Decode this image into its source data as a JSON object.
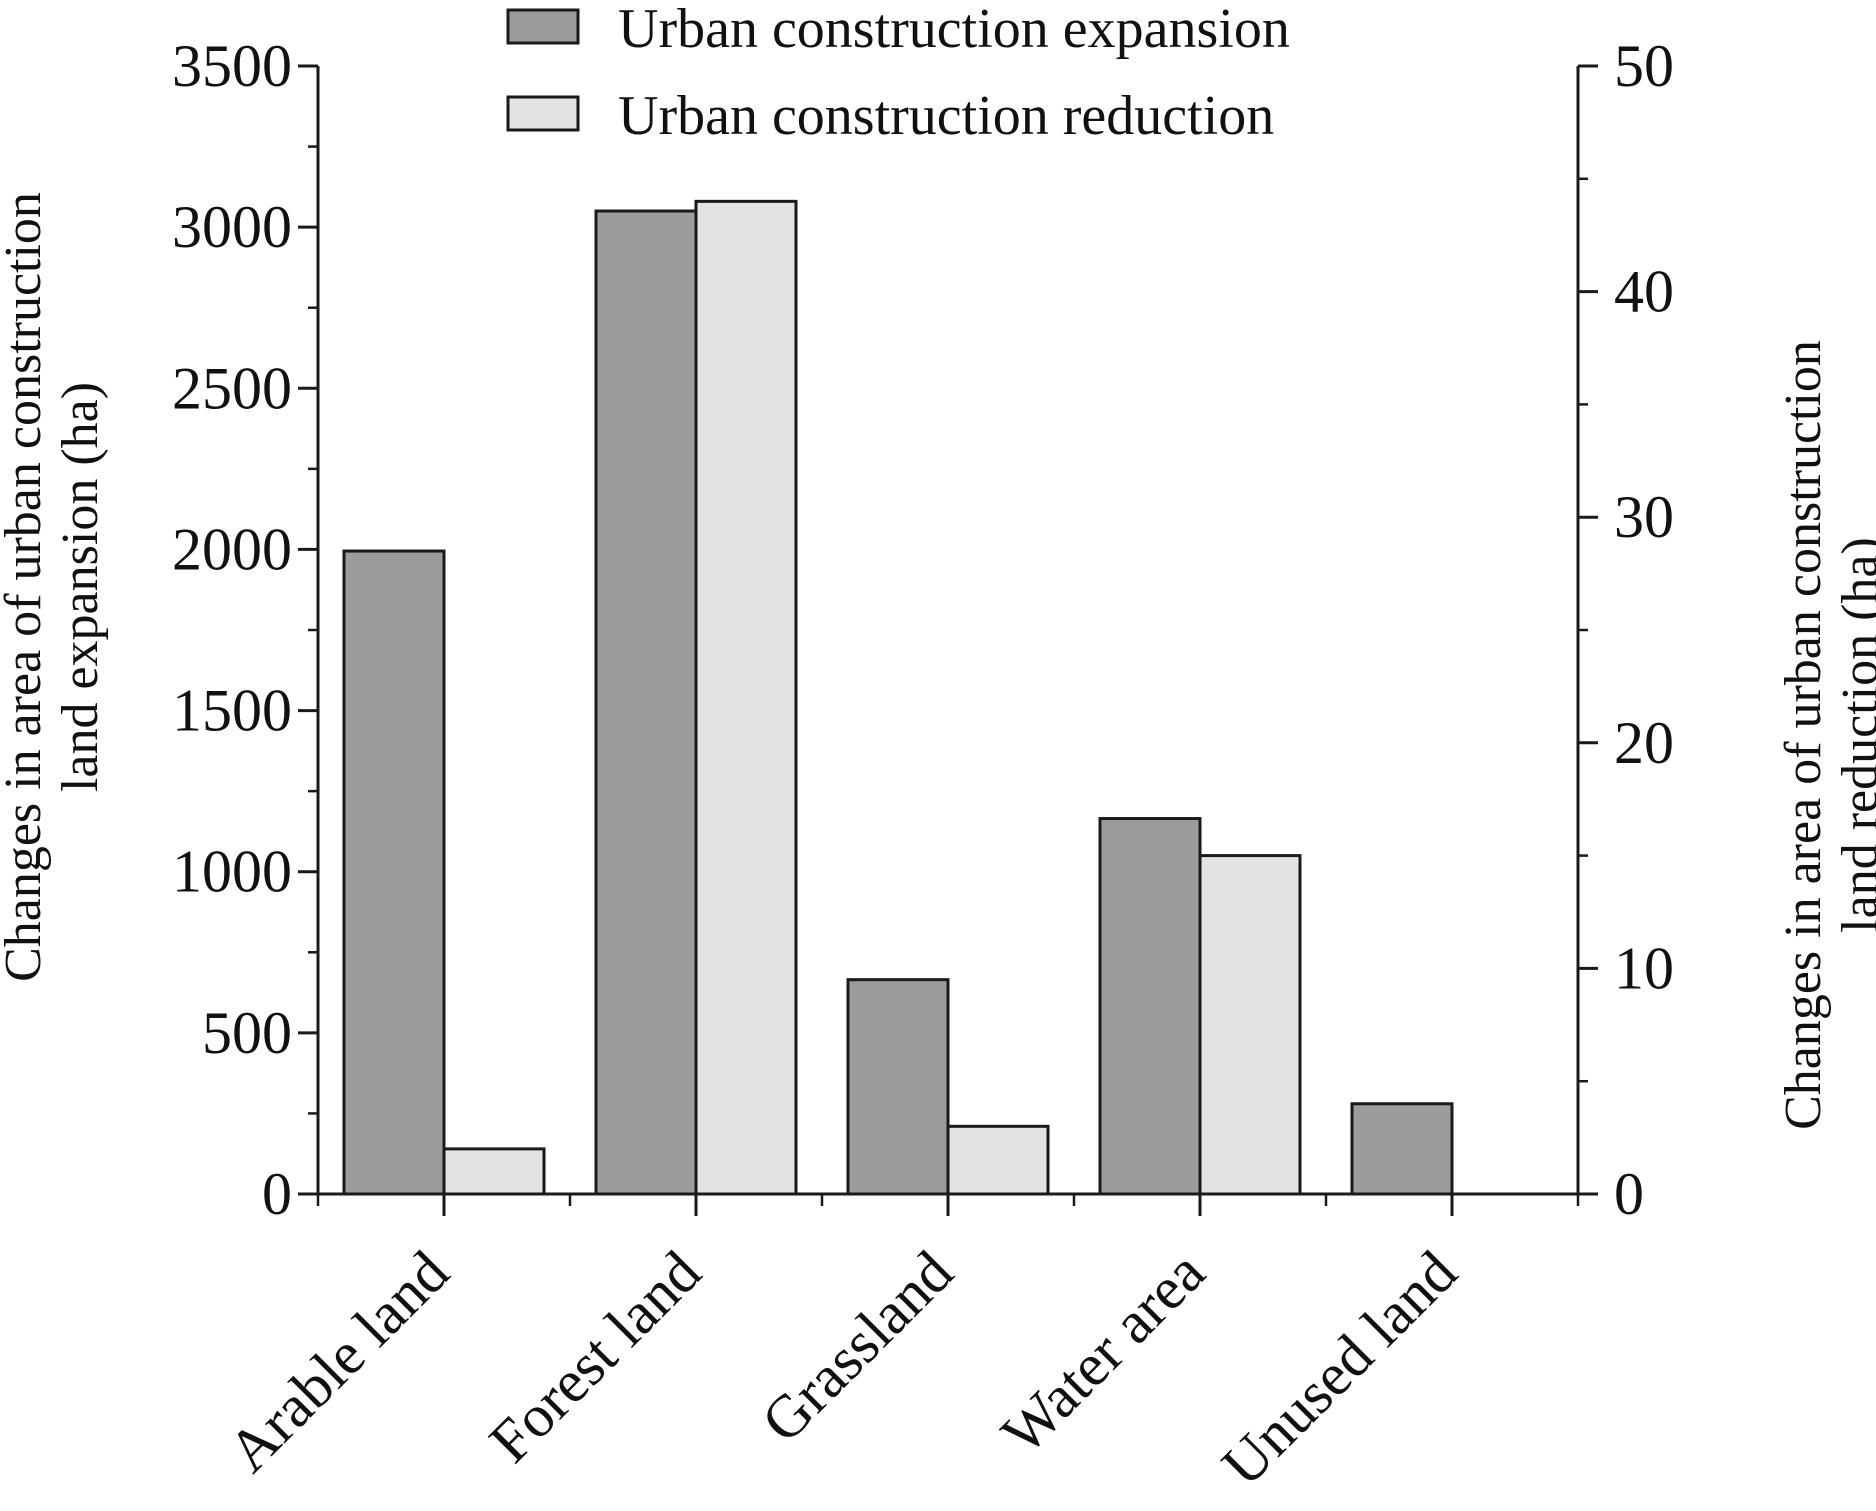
{
  "chart_data": {
    "type": "bar",
    "categories": [
      "Arable land",
      "Forest land",
      "Grassland",
      "Water area",
      "Unused land"
    ],
    "series": [
      {
        "name": "Urban construction expansion",
        "axis": "left",
        "color": "#9b9c9b",
        "values": [
          1995,
          3050,
          665,
          1165,
          280
        ]
      },
      {
        "name": "Urban construction reduction",
        "axis": "right",
        "color": "#e3e3e5",
        "values": [
          2.0,
          44.0,
          3.0,
          15.0,
          0
        ]
      }
    ],
    "ylabel_left": [
      "Changes in area of urban construction",
      "land expansion (ha)"
    ],
    "ylabel_right": [
      "Changes in area of urban construction",
      "land reduction (ha)"
    ],
    "xlabel": "",
    "ylim_left": [
      0,
      3500
    ],
    "yticks_left": [
      "0",
      "500",
      "1000",
      "1500",
      "2000",
      "2500",
      "3000",
      "3500"
    ],
    "ylim_right": [
      0,
      50
    ],
    "yticks_right": [
      "0",
      "10",
      "20",
      "30",
      "40",
      "50"
    ],
    "legend_position": "top-center",
    "grid": false
  }
}
